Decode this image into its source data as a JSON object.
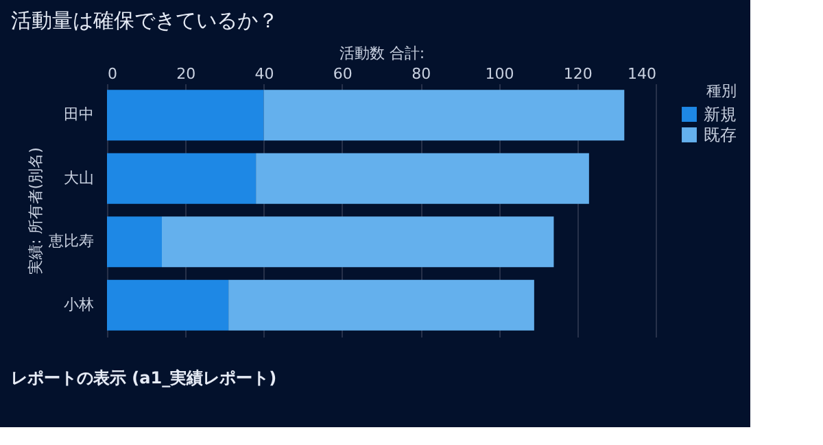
{
  "chart_data": {
    "type": "bar",
    "orientation": "horizontal",
    "stacked": true,
    "title": "活動量は確保できているか？",
    "xlabel": "活動数 合計:",
    "ylabel": "実績: 所有者(別名)",
    "legend_title": "種別",
    "legend": "top right",
    "grid": "x",
    "categories": [
      "田中",
      "大山",
      "恵比寿",
      "小林"
    ],
    "series": [
      {
        "name": "新規",
        "color": "#1e88e5",
        "values": [
          40,
          38,
          14,
          31
        ]
      },
      {
        "name": "既存",
        "color": "#64b0ed",
        "values": [
          92,
          85,
          100,
          78
        ]
      }
    ],
    "xlim": [
      0,
      140
    ],
    "xticks": [
      0,
      20,
      40,
      60,
      80,
      100,
      120,
      140
    ],
    "annotations": [
      "レポートの表示 (a1_実績レポート)"
    ]
  }
}
